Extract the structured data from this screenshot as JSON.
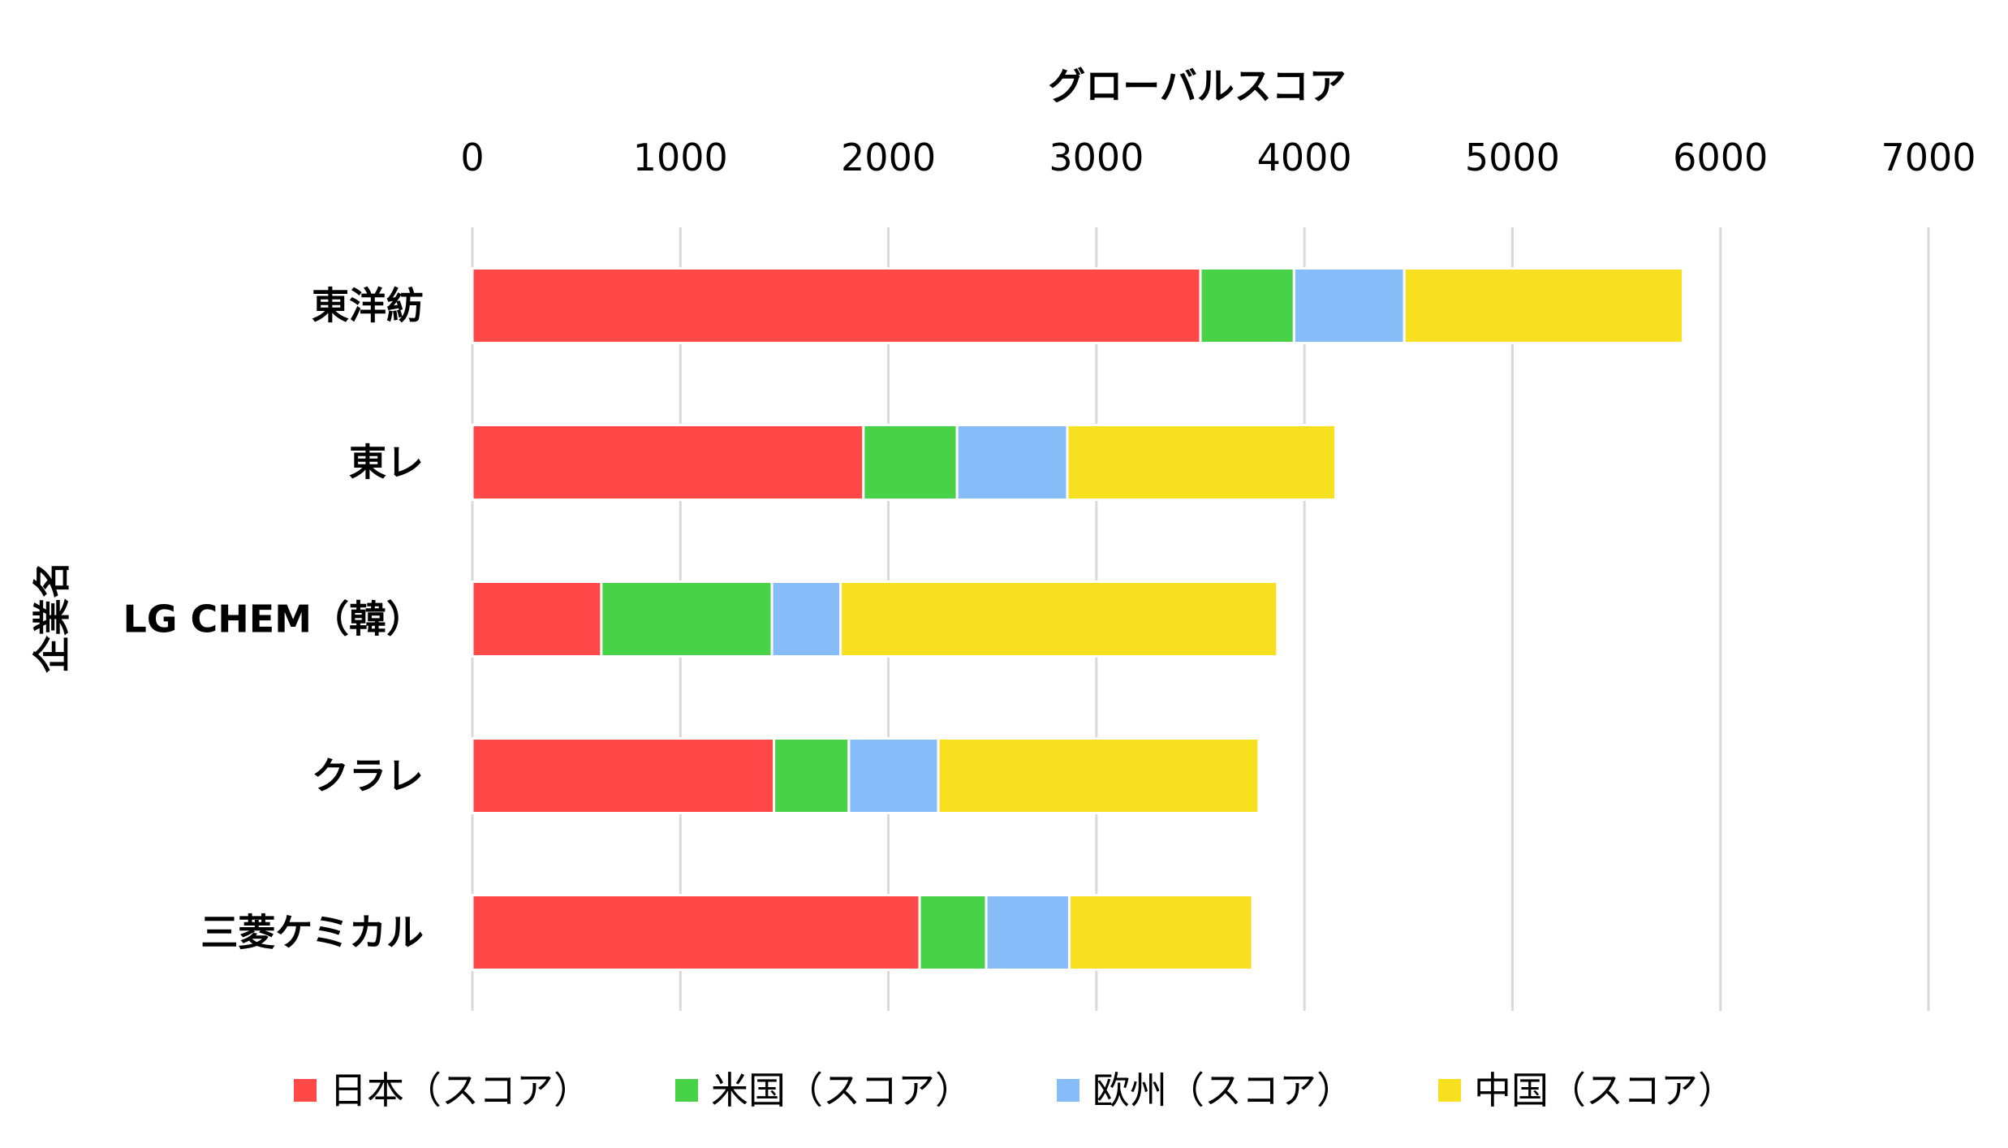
{
  "chart_data": {
    "type": "bar",
    "orientation": "horizontal",
    "stacked": true,
    "xlabel": "グローバルスコア",
    "ylabel": "企業名",
    "xlim": [
      0,
      7000
    ],
    "xticks": [
      "0",
      "1000",
      "2000",
      "3000",
      "4000",
      "5000",
      "6000",
      "7000"
    ],
    "x_axis_position": "top",
    "grid": true,
    "legend_position": "bottom",
    "categories": [
      "東洋紡",
      "東レ",
      "LG CHEM（韓）",
      "クラレ",
      "三菱ケミカル"
    ],
    "series": [
      {
        "name": "日本（スコア）",
        "color": "#FF4848",
        "values": [
          3500,
          1880,
          620,
          1450,
          2150
        ]
      },
      {
        "name": "米国（スコア）",
        "color": "#48D248",
        "values": [
          450,
          450,
          820,
          360,
          320
        ]
      },
      {
        "name": "欧州（スコア）",
        "color": "#86BCF8",
        "values": [
          530,
          530,
          330,
          430,
          400
        ]
      },
      {
        "name": "中国（スコア）",
        "color": "#F7E020",
        "values": [
          1340,
          1290,
          2100,
          1540,
          880
        ]
      }
    ]
  }
}
